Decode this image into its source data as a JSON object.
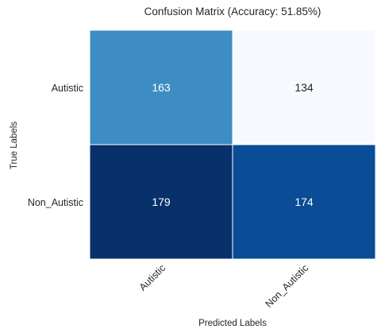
{
  "chart_data": {
    "type": "heatmap",
    "title": "Confusion Matrix (Accuracy: 51.85%)",
    "xlabel": "Predicted Labels",
    "ylabel": "True Labels",
    "x_categories": [
      "Autistic",
      "Non_Autistic"
    ],
    "y_categories": [
      "Autistic",
      "Non_Autistic"
    ],
    "values": [
      [
        163,
        134
      ],
      [
        179,
        174
      ]
    ],
    "cell_colors": [
      [
        "#3d8dc4",
        "#f6faff"
      ],
      [
        "#08306b",
        "#0a4c95"
      ]
    ],
    "label_colors": [
      [
        "#ffffff",
        "#222222"
      ],
      [
        "#ffffff",
        "#ffffff"
      ]
    ],
    "colormap": "Blues",
    "colorbar": false
  }
}
